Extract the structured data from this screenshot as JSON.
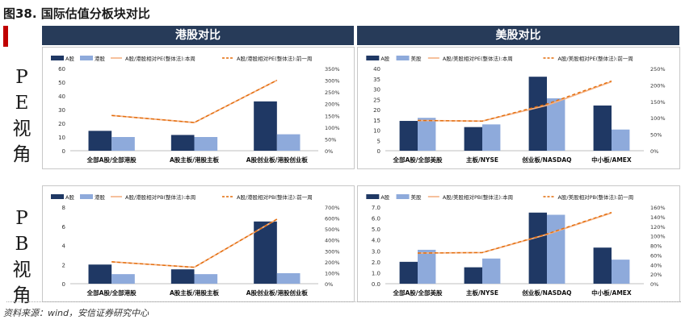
{
  "figure": {
    "title": "图38. 国际估值分板块对比",
    "source": "资料来源：wind，安信证券研究中心"
  },
  "columns": {
    "left": "港股对比",
    "right": "美股对比"
  },
  "side_labels": {
    "pe": "PE视角",
    "pb": "PB视角"
  },
  "colors": {
    "a_share": "#1f3864",
    "foreign": "#8eaadb",
    "this_week": "#f4b183",
    "prev_week": "#e36c09",
    "header": "#273b59",
    "accent": "#c00000"
  },
  "chart_data": [
    {
      "type": "bar",
      "id": "hk-pe",
      "categories": [
        "全部A股/全部港股",
        "A股主板/港股主板",
        "A股创业板/港股创业板"
      ],
      "series": [
        {
          "name": "A股",
          "values": [
            14.5,
            11.5,
            36
          ]
        },
        {
          "name": "港股",
          "values": [
            10,
            10,
            12
          ]
        }
      ],
      "lines": [
        {
          "name": "A股/港股相对PE(整体法):本周",
          "values": [
            150,
            120,
            300
          ]
        },
        {
          "name": "A股/港股相对PE(整体法):前一周",
          "values": [
            150,
            120,
            300
          ]
        }
      ],
      "ylim": [
        0,
        60
      ],
      "yticks": [
        0,
        10,
        20,
        30,
        40,
        50,
        60
      ],
      "y2lim": [
        0,
        350
      ],
      "y2ticks": [
        "0%",
        "50%",
        "100%",
        "150%",
        "200%",
        "250%",
        "300%",
        "350%"
      ]
    },
    {
      "type": "bar",
      "id": "us-pe",
      "categories": [
        "全部A股/全部美股",
        "主板/NYSE",
        "创业板/NASDAQ",
        "中小板/AMEX"
      ],
      "series": [
        {
          "name": "A股",
          "values": [
            14.5,
            11.5,
            36,
            22
          ]
        },
        {
          "name": "美股",
          "values": [
            16,
            12.8,
            25.5,
            10.3
          ]
        }
      ],
      "lines": [
        {
          "name": "A股/美股相对PE(整体法):本周",
          "values": [
            92,
            90,
            138,
            210
          ]
        },
        {
          "name": "A股/美股相对PE(整体法):前一周",
          "values": [
            92,
            90,
            142,
            212
          ]
        }
      ],
      "ylim": [
        0,
        40
      ],
      "yticks": [
        0,
        5,
        10,
        15,
        20,
        25,
        30,
        35,
        40
      ],
      "y2lim": [
        0,
        250
      ],
      "y2ticks": [
        "0%",
        "50%",
        "100%",
        "150%",
        "200%",
        "250%"
      ]
    },
    {
      "type": "bar",
      "id": "hk-pb",
      "categories": [
        "全部A股/全部港股",
        "A股主板/港股主板",
        "A股创业板/港股创业板"
      ],
      "series": [
        {
          "name": "A股",
          "values": [
            2,
            1.5,
            6.5
          ]
        },
        {
          "name": "港股",
          "values": [
            1,
            1,
            1.1
          ]
        }
      ],
      "lines": [
        {
          "name": "A股/港股相对PB(整体法):本周",
          "values": [
            200,
            150,
            590
          ]
        },
        {
          "name": "A股/港股相对PB(整体法):前一周",
          "values": [
            200,
            150,
            590
          ]
        }
      ],
      "ylim": [
        0,
        8
      ],
      "yticks": [
        0,
        2,
        4,
        6,
        8
      ],
      "y2lim": [
        0,
        700
      ],
      "y2ticks": [
        "0%",
        "100%",
        "200%",
        "300%",
        "400%",
        "500%",
        "600%",
        "700%"
      ]
    },
    {
      "type": "bar",
      "id": "us-pb",
      "categories": [
        "全部A股/全部美股",
        "主板/NYSE",
        "创业板/NASDAQ",
        "中小板/AMEX"
      ],
      "series": [
        {
          "name": "A股",
          "values": [
            2,
            1.5,
            6.5,
            3.3
          ]
        },
        {
          "name": "美股",
          "values": [
            3.1,
            2.3,
            6.3,
            2.2
          ]
        }
      ],
      "lines": [
        {
          "name": "A股/美股相对PB(整体法):本周",
          "values": [
            64,
            65,
            103,
            148
          ]
        },
        {
          "name": "A股/美股相对PB(整体法):前一周",
          "values": [
            64,
            65,
            104,
            149
          ]
        }
      ],
      "ylim": [
        0,
        7
      ],
      "yticks": [
        "0.0",
        "1.0",
        "2.0",
        "3.0",
        "4.0",
        "5.0",
        "6.0",
        "7.0"
      ],
      "y2lim": [
        0,
        160
      ],
      "y2ticks": [
        "0%",
        "20%",
        "40%",
        "60%",
        "80%",
        "100%",
        "120%",
        "140%",
        "160%"
      ]
    }
  ]
}
